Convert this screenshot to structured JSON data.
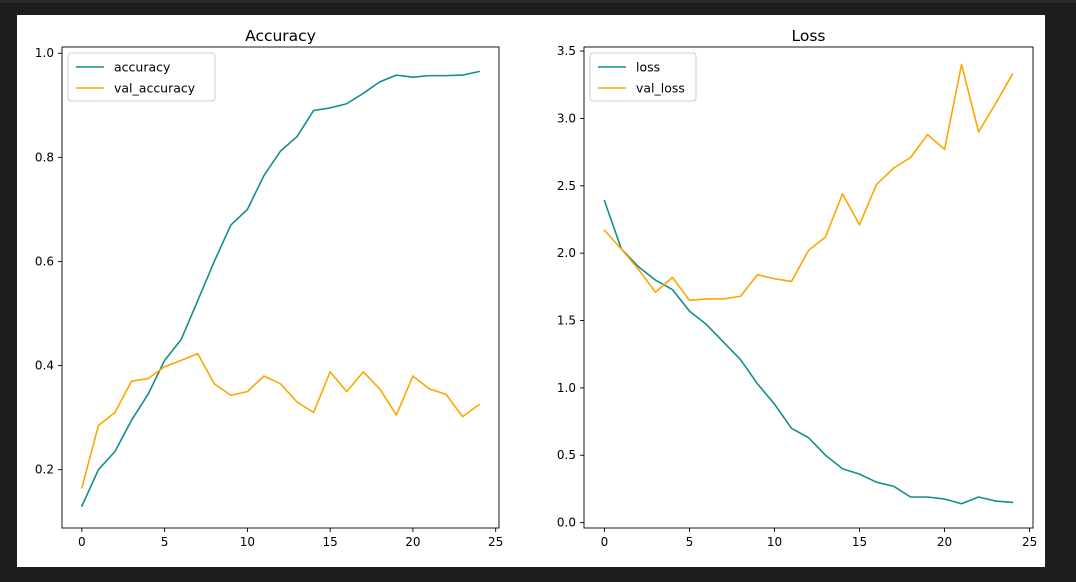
{
  "chart_data": [
    {
      "type": "line",
      "title": "Accuracy",
      "xlabel": "",
      "ylabel": "",
      "xlim": [
        -1.2,
        25.2
      ],
      "ylim": [
        0.088,
        1.012
      ],
      "xticks": [
        0,
        5,
        10,
        15,
        20,
        25
      ],
      "yticks": [
        0.2,
        0.4,
        0.6,
        0.8,
        1.0
      ],
      "ytick_labels": [
        "0.2",
        "0.4",
        "0.6",
        "0.8",
        "1.0"
      ],
      "legend_position": "upper-left",
      "grid": false,
      "x": [
        0,
        1,
        2,
        3,
        4,
        5,
        6,
        7,
        8,
        9,
        10,
        11,
        12,
        13,
        14,
        15,
        16,
        17,
        18,
        19,
        20,
        21,
        22,
        23,
        24
      ],
      "series": [
        {
          "name": "accuracy",
          "color": "#138d8d",
          "values": [
            0.13,
            0.2,
            0.235,
            0.295,
            0.345,
            0.41,
            0.45,
            0.525,
            0.6,
            0.67,
            0.7,
            0.765,
            0.812,
            0.84,
            0.89,
            0.895,
            0.903,
            0.923,
            0.945,
            0.958,
            0.954,
            0.957,
            0.957,
            0.958,
            0.965
          ]
        },
        {
          "name": "val_accuracy",
          "color": "#ffa500",
          "values": [
            0.165,
            0.285,
            0.31,
            0.37,
            0.375,
            0.398,
            0.41,
            0.423,
            0.365,
            0.343,
            0.35,
            0.38,
            0.365,
            0.33,
            0.31,
            0.388,
            0.35,
            0.388,
            0.355,
            0.305,
            0.38,
            0.355,
            0.345,
            0.302,
            0.325
          ]
        }
      ]
    },
    {
      "type": "line",
      "title": "Loss",
      "xlabel": "",
      "ylabel": "",
      "xlim": [
        -1.2,
        25.2
      ],
      "ylim": [
        -0.04,
        3.53
      ],
      "xticks": [
        0,
        5,
        10,
        15,
        20,
        25
      ],
      "yticks": [
        0.0,
        0.5,
        1.0,
        1.5,
        2.0,
        2.5,
        3.0,
        3.5
      ],
      "ytick_labels": [
        "0.0",
        "0.5",
        "1.0",
        "1.5",
        "2.0",
        "2.5",
        "3.0",
        "3.5"
      ],
      "legend_position": "upper-left",
      "grid": false,
      "x": [
        0,
        1,
        2,
        3,
        4,
        5,
        6,
        7,
        8,
        9,
        10,
        11,
        12,
        13,
        14,
        15,
        16,
        17,
        18,
        19,
        20,
        21,
        22,
        23,
        24
      ],
      "series": [
        {
          "name": "loss",
          "color": "#138d8d",
          "values": [
            2.39,
            2.03,
            1.9,
            1.8,
            1.73,
            1.57,
            1.47,
            1.34,
            1.21,
            1.03,
            0.88,
            0.7,
            0.63,
            0.5,
            0.4,
            0.36,
            0.3,
            0.27,
            0.19,
            0.19,
            0.175,
            0.14,
            0.19,
            0.16,
            0.15
          ]
        },
        {
          "name": "val_loss",
          "color": "#ffa500",
          "values": [
            2.17,
            2.03,
            1.88,
            1.71,
            1.82,
            1.65,
            1.66,
            1.66,
            1.68,
            1.84,
            1.81,
            1.79,
            2.02,
            2.12,
            2.44,
            2.21,
            2.51,
            2.63,
            2.71,
            2.88,
            2.77,
            3.4,
            2.9,
            3.11,
            3.33
          ]
        }
      ]
    }
  ]
}
